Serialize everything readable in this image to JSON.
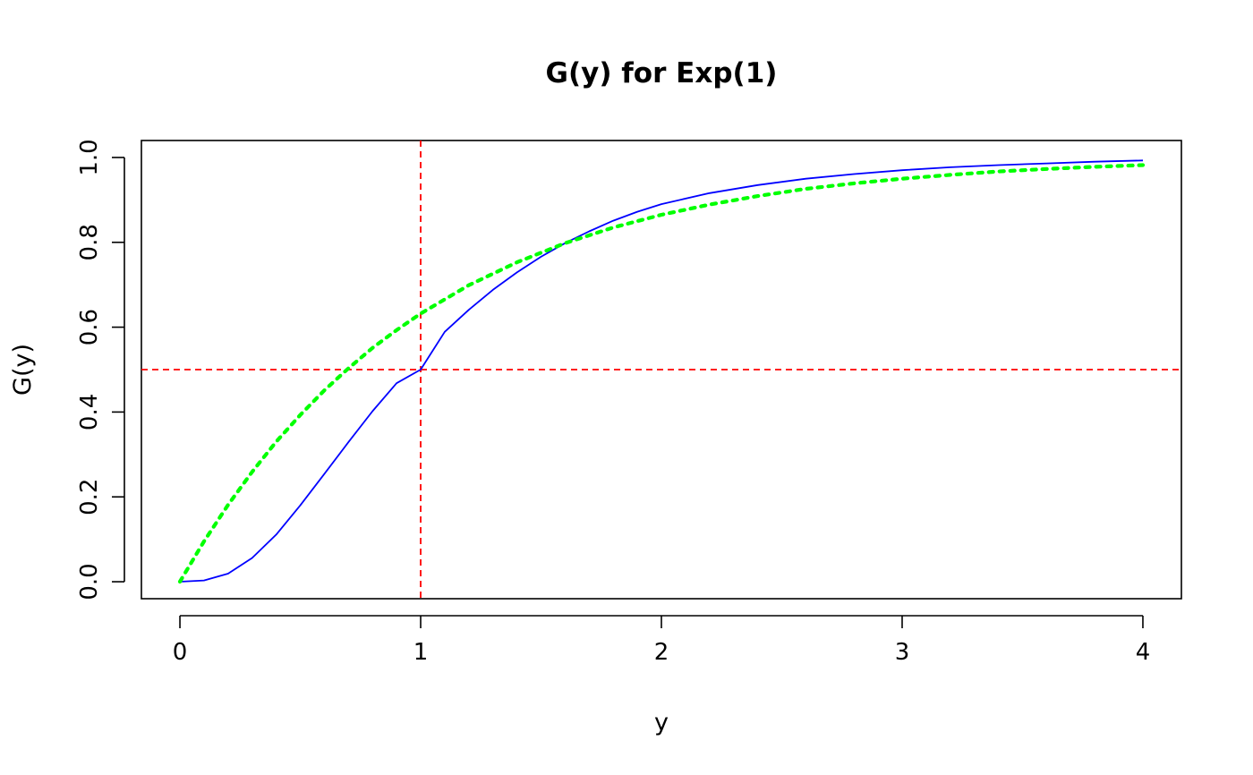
{
  "chart_data": {
    "type": "line",
    "title": "G(y) for Exp(1)",
    "xlabel": "y",
    "ylabel": "G(y)",
    "xlim": [
      -0.16,
      4.16
    ],
    "ylim": [
      -0.04,
      1.04
    ],
    "xticks": [
      0,
      1,
      2,
      3,
      4
    ],
    "xtick_labels": [
      "0",
      "1",
      "2",
      "3",
      "4"
    ],
    "yticks": [
      0.0,
      0.2,
      0.4,
      0.6,
      0.8,
      1.0
    ],
    "ytick_labels": [
      "0.0",
      "0.2",
      "0.4",
      "0.6",
      "0.8",
      "1.0"
    ],
    "grid": false,
    "series": [
      {
        "color": "#0000ff",
        "style": "solid",
        "x": [
          0,
          0.1,
          0.2,
          0.3,
          0.4,
          0.5,
          0.6,
          0.7,
          0.8,
          0.9,
          1.0,
          1.1,
          1.2,
          1.3,
          1.4,
          1.5,
          1.6,
          1.7,
          1.8,
          1.9,
          2.0,
          2.2,
          2.4,
          2.6,
          2.8,
          3.0,
          3.2,
          3.4,
          3.6,
          3.8,
          4.0
        ],
        "y": [
          0.0,
          0.003,
          0.019,
          0.056,
          0.111,
          0.18,
          0.254,
          0.329,
          0.402,
          0.468,
          0.5,
          0.589,
          0.641,
          0.688,
          0.729,
          0.766,
          0.798,
          0.826,
          0.851,
          0.872,
          0.89,
          0.916,
          0.935,
          0.95,
          0.961,
          0.97,
          0.977,
          0.982,
          0.986,
          0.99,
          0.993
        ]
      },
      {
        "color": "#00ff00",
        "style": "dotted",
        "x": [
          0,
          0.1,
          0.2,
          0.3,
          0.4,
          0.5,
          0.6,
          0.7,
          0.8,
          0.9,
          1.0,
          1.2,
          1.4,
          1.6,
          1.8,
          2.0,
          2.2,
          2.4,
          2.6,
          2.8,
          3.0,
          3.2,
          3.4,
          3.6,
          3.8,
          4.0
        ],
        "y": [
          0.0,
          0.095,
          0.181,
          0.259,
          0.33,
          0.393,
          0.451,
          0.503,
          0.551,
          0.593,
          0.632,
          0.699,
          0.753,
          0.798,
          0.835,
          0.865,
          0.889,
          0.909,
          0.926,
          0.939,
          0.95,
          0.959,
          0.967,
          0.973,
          0.978,
          0.982
        ]
      }
    ],
    "reference_lines": [
      {
        "orientation": "vertical",
        "value": 1,
        "color": "#ff0000",
        "style": "dashed"
      },
      {
        "orientation": "horizontal",
        "value": 0.5,
        "color": "#ff0000",
        "style": "dashed"
      }
    ]
  }
}
